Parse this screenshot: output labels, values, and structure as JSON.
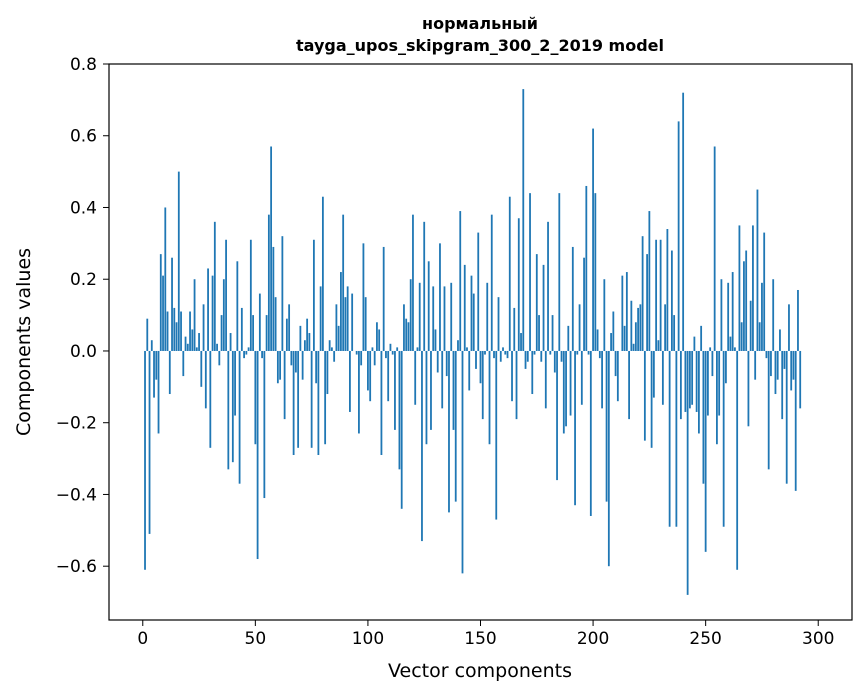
{
  "chart_data": {
    "type": "bar",
    "title_line1": "нормальный",
    "title_line2": "tayga_upos_skipgram_300_2_2019 model",
    "xlabel": "Vector components",
    "ylabel": "Components values",
    "xlim": [
      -15,
      315
    ],
    "ylim": [
      -0.75,
      0.8
    ],
    "xticks": [
      0,
      50,
      100,
      150,
      200,
      250,
      300
    ],
    "xtick_labels": [
      "0",
      "50",
      "100",
      "150",
      "200",
      "250",
      "300"
    ],
    "yticks": [
      -0.6,
      -0.4,
      -0.2,
      0.0,
      0.2,
      0.4,
      0.6,
      0.8
    ],
    "ytick_labels": [
      "−0.6",
      "−0.4",
      "−0.2",
      "0.0",
      "0.2",
      "0.4",
      "0.6",
      "0.8"
    ],
    "bar_color": "#1f77b4",
    "grid": false,
    "values": [
      0.0,
      -0.61,
      0.09,
      -0.51,
      0.03,
      -0.13,
      -0.08,
      -0.23,
      0.27,
      0.21,
      0.4,
      0.11,
      -0.12,
      0.26,
      0.12,
      0.08,
      0.5,
      0.11,
      -0.07,
      0.04,
      0.02,
      0.11,
      0.06,
      0.2,
      0.01,
      0.05,
      -0.1,
      0.13,
      -0.16,
      0.23,
      -0.27,
      0.21,
      0.36,
      0.02,
      -0.04,
      0.1,
      0.2,
      0.31,
      -0.33,
      0.05,
      -0.31,
      -0.18,
      0.25,
      -0.37,
      0.12,
      -0.02,
      -0.01,
      0.01,
      0.31,
      0.1,
      -0.26,
      -0.58,
      0.16,
      -0.02,
      -0.41,
      0.1,
      0.38,
      0.57,
      0.29,
      0.15,
      -0.09,
      -0.08,
      0.32,
      -0.19,
      0.09,
      0.13,
      -0.04,
      -0.29,
      -0.06,
      -0.27,
      0.07,
      -0.08,
      0.03,
      0.09,
      0.05,
      -0.27,
      0.31,
      -0.09,
      -0.29,
      0.18,
      0.43,
      -0.26,
      -0.12,
      0.03,
      0.01,
      -0.03,
      0.13,
      0.07,
      0.22,
      0.38,
      0.15,
      0.18,
      -0.17,
      0.16,
      0.0,
      -0.01,
      -0.23,
      -0.04,
      0.3,
      0.15,
      -0.11,
      -0.14,
      0.01,
      -0.04,
      0.08,
      0.06,
      -0.29,
      0.29,
      -0.02,
      -0.14,
      0.02,
      -0.01,
      -0.22,
      0.01,
      -0.33,
      -0.44,
      0.13,
      0.09,
      0.08,
      0.2,
      0.38,
      -0.15,
      0.01,
      0.19,
      -0.53,
      0.36,
      -0.26,
      0.25,
      -0.22,
      0.18,
      0.06,
      -0.06,
      0.3,
      -0.16,
      0.18,
      -0.07,
      -0.45,
      0.19,
      -0.22,
      -0.42,
      0.03,
      0.39,
      -0.62,
      0.24,
      0.01,
      -0.11,
      0.21,
      0.16,
      -0.05,
      0.33,
      -0.09,
      -0.19,
      -0.01,
      0.19,
      -0.26,
      0.38,
      -0.02,
      -0.47,
      0.15,
      -0.03,
      0.01,
      -0.01,
      -0.02,
      0.43,
      -0.14,
      0.12,
      -0.19,
      0.37,
      0.05,
      0.73,
      -0.05,
      -0.03,
      0.44,
      -0.12,
      -0.01,
      0.27,
      0.1,
      -0.03,
      0.24,
      -0.16,
      0.36,
      -0.01,
      0.1,
      -0.06,
      -0.36,
      0.44,
      -0.03,
      -0.23,
      -0.21,
      0.07,
      -0.18,
      0.29,
      -0.43,
      -0.01,
      0.13,
      -0.15,
      0.26,
      0.46,
      -0.01,
      -0.46,
      0.62,
      0.44,
      0.06,
      -0.02,
      -0.16,
      0.2,
      -0.42,
      -0.6,
      0.05,
      0.11,
      -0.07,
      -0.14,
      0.0,
      0.21,
      0.07,
      0.22,
      -0.19,
      0.14,
      0.02,
      0.08,
      0.12,
      0.13,
      0.32,
      -0.25,
      0.27,
      0.39,
      -0.27,
      -0.13,
      0.31,
      0.03,
      0.31,
      -0.15,
      0.13,
      0.34,
      -0.49,
      0.28,
      0.1,
      -0.49,
      0.64,
      -0.19,
      0.72,
      -0.17,
      -0.68,
      -0.16,
      -0.15,
      0.04,
      -0.17,
      -0.23,
      0.07,
      -0.37,
      -0.56,
      -0.18,
      0.01,
      -0.07,
      0.57,
      -0.26,
      -0.18,
      0.2,
      -0.49,
      -0.09,
      0.19,
      0.04,
      0.22,
      0.01,
      -0.61,
      0.35,
      0.08,
      0.25,
      0.28,
      -0.21,
      0.14,
      0.35,
      -0.08,
      0.45,
      0.08,
      0.19,
      0.33,
      -0.02,
      -0.33,
      -0.07,
      0.2,
      -0.12,
      -0.08,
      0.06,
      -0.19,
      -0.05,
      -0.37,
      0.13,
      -0.11,
      -0.08,
      -0.39,
      0.17,
      -0.16
    ]
  }
}
